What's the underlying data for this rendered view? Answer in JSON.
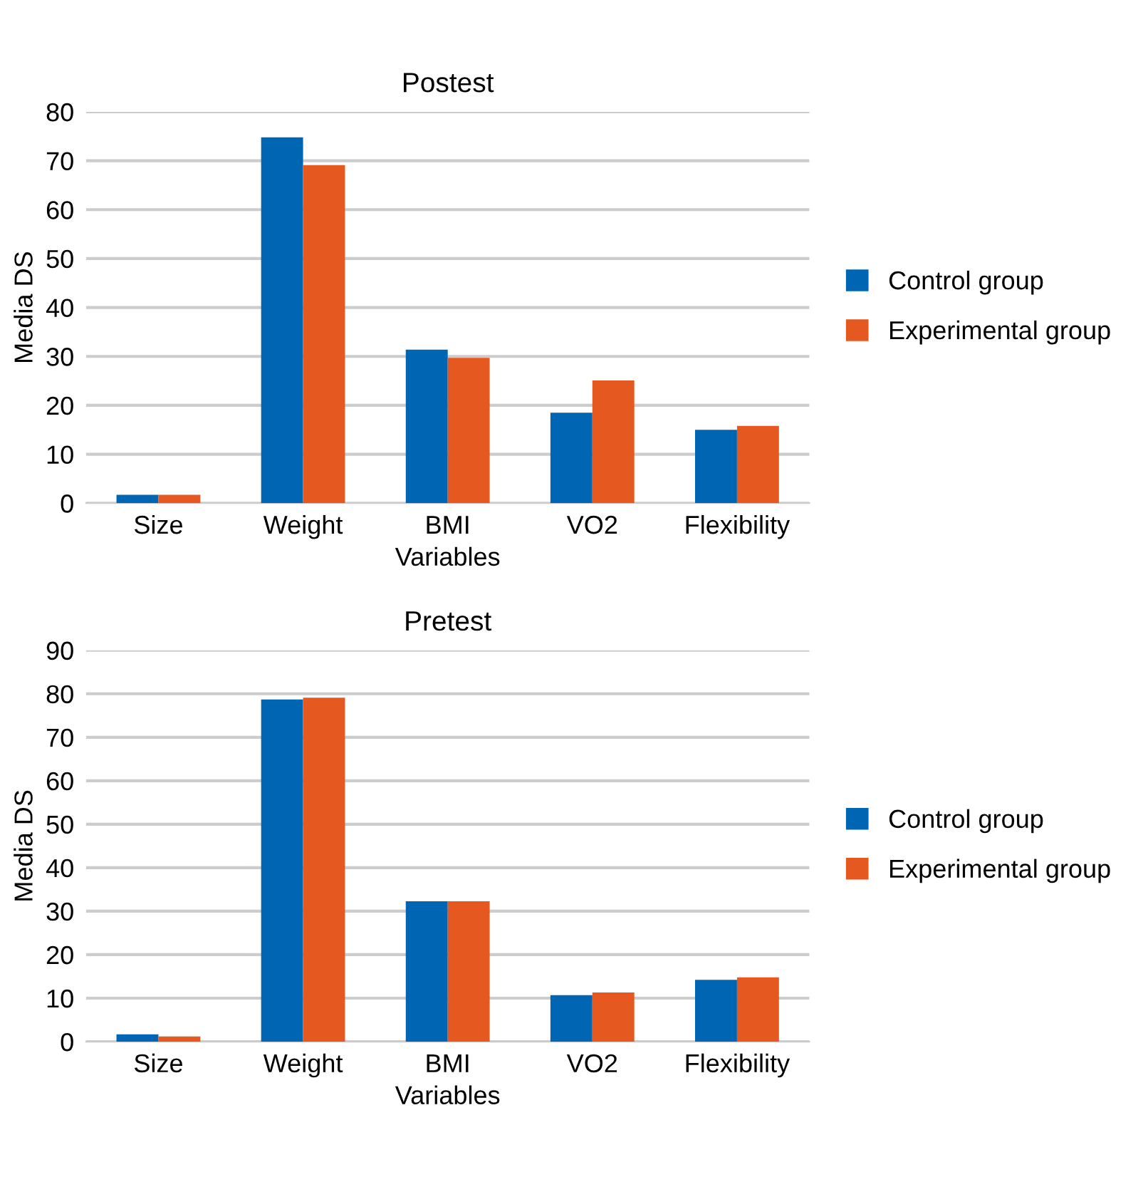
{
  "chart_data": [
    {
      "type": "bar",
      "title": "Postest",
      "xlabel": "Variables",
      "ylabel": "Media DS",
      "categories": [
        "Size",
        "Weight",
        "BMI",
        "VO2",
        "Flexibility"
      ],
      "series": [
        {
          "name": "Control group",
          "color": "#0066b3",
          "values": [
            1.7,
            74.8,
            31.4,
            18.5,
            15.0
          ]
        },
        {
          "name": "Experimental group",
          "color": "#e5581f",
          "values": [
            1.7,
            69.1,
            29.7,
            25.1,
            15.8
          ]
        }
      ],
      "ylim": [
        0,
        80
      ],
      "yticks": [
        0,
        10,
        20,
        30,
        40,
        50,
        60,
        70,
        80
      ],
      "grid": "y",
      "legend": "right"
    },
    {
      "type": "bar",
      "title": "Pretest",
      "xlabel": "Variables",
      "ylabel": "Media DS",
      "categories": [
        "Size",
        "Weight",
        "BMI",
        "VO2",
        "Flexibility"
      ],
      "series": [
        {
          "name": "Control group",
          "color": "#0066b3",
          "values": [
            1.7,
            78.7,
            32.3,
            10.7,
            14.2
          ]
        },
        {
          "name": "Experimental group",
          "color": "#e5581f",
          "values": [
            1.2,
            79.1,
            32.3,
            11.3,
            14.8
          ]
        }
      ],
      "ylim": [
        0,
        90
      ],
      "yticks": [
        0,
        10,
        20,
        30,
        40,
        50,
        60,
        70,
        80,
        90
      ],
      "grid": "y",
      "legend": "right"
    }
  ]
}
